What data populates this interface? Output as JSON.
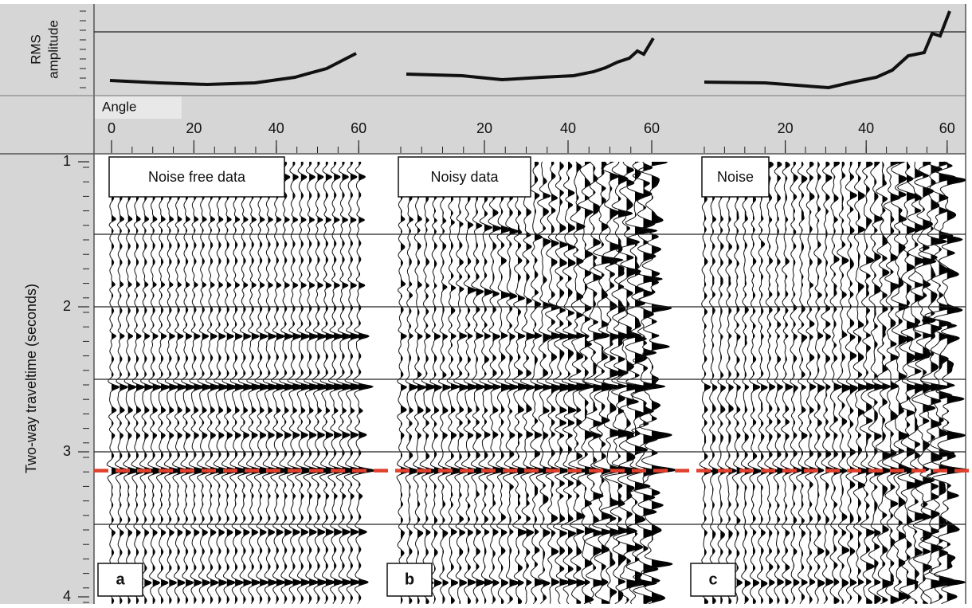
{
  "rms_axis_label": [
    "RMS",
    "amplitude"
  ],
  "angle_label": "Angle",
  "y_axis_label": "Two-way traveltime (seconds)",
  "yticks": [
    1,
    2,
    3,
    4
  ],
  "panels": [
    {
      "title": "Noise free data",
      "letter": "a",
      "angle_ticks": [
        0,
        20,
        40,
        60
      ]
    },
    {
      "title": "Noisy data",
      "letter": "b",
      "angle_ticks": [
        20,
        40,
        60
      ]
    },
    {
      "title": "Noise",
      "letter": "c",
      "angle_ticks": [
        20,
        40,
        60
      ]
    }
  ]
}
